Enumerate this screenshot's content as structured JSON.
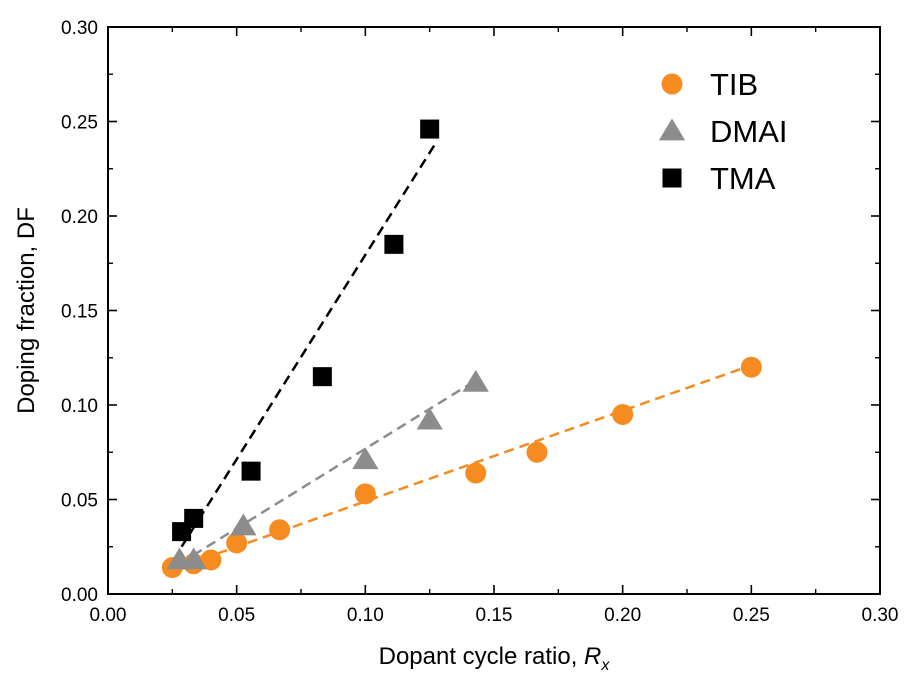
{
  "chart_data": {
    "type": "scatter",
    "xlabel": "Dopant cycle ratio, ",
    "xlabel_var": "R",
    "xlabel_sub": "x",
    "ylabel": "Doping fraction, DF",
    "xlim": [
      0.0,
      0.3
    ],
    "ylim": [
      0.0,
      0.3
    ],
    "x_ticks": [
      "0.00",
      "0.05",
      "0.10",
      "0.15",
      "0.20",
      "0.25",
      "0.30"
    ],
    "y_ticks": [
      "0.00",
      "0.05",
      "0.10",
      "0.15",
      "0.20",
      "0.25",
      "0.30"
    ],
    "grid": false,
    "legend_position": "top-right",
    "series": [
      {
        "name": "TIB",
        "marker": "circle",
        "color": "#F68B1F",
        "points": [
          [
            0.025,
            0.014
          ],
          [
            0.0333,
            0.016
          ],
          [
            0.04,
            0.018
          ],
          [
            0.05,
            0.027
          ],
          [
            0.0667,
            0.034
          ],
          [
            0.1,
            0.053
          ],
          [
            0.1429,
            0.064
          ],
          [
            0.1667,
            0.075
          ],
          [
            0.2,
            0.095
          ],
          [
            0.25,
            0.12
          ]
        ],
        "fit": [
          [
            0.025,
            0.013
          ],
          [
            0.25,
            0.121
          ]
        ]
      },
      {
        "name": "DMAI",
        "marker": "triangle",
        "color": "#8C8C8C",
        "points": [
          [
            0.0278,
            0.018
          ],
          [
            0.0333,
            0.018
          ],
          [
            0.0526,
            0.036
          ],
          [
            0.1,
            0.071
          ],
          [
            0.125,
            0.092
          ],
          [
            0.1429,
            0.112
          ]
        ],
        "fit": [
          [
            0.0278,
            0.016
          ],
          [
            0.1429,
            0.113
          ]
        ]
      },
      {
        "name": "TMA",
        "marker": "square",
        "color": "#000000",
        "points": [
          [
            0.0286,
            0.033
          ],
          [
            0.0333,
            0.04
          ],
          [
            0.0556,
            0.065
          ],
          [
            0.0833,
            0.115
          ],
          [
            0.1111,
            0.185
          ],
          [
            0.125,
            0.246
          ]
        ],
        "fit": [
          [
            0.0286,
            0.025
          ],
          [
            0.128,
            0.24
          ]
        ]
      }
    ]
  }
}
